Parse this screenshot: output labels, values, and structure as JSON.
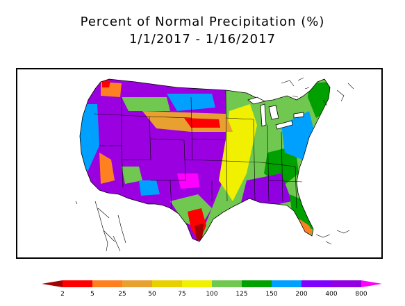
{
  "title": {
    "line1": "Percent of Normal Precipitation (%)",
    "line2": "1/1/2017 - 1/16/2017"
  },
  "legend": {
    "ticks": [
      "2",
      "5",
      "25",
      "50",
      "75",
      "100",
      "125",
      "150",
      "200",
      "400",
      "800"
    ],
    "colors": [
      "#a80000",
      "#ff0000",
      "#ff8020",
      "#e8a030",
      "#e8d000",
      "#f0f000",
      "#70c850",
      "#00a000",
      "#00a0ff",
      "#8000ff",
      "#9000e0",
      "#ff00ff"
    ]
  }
}
